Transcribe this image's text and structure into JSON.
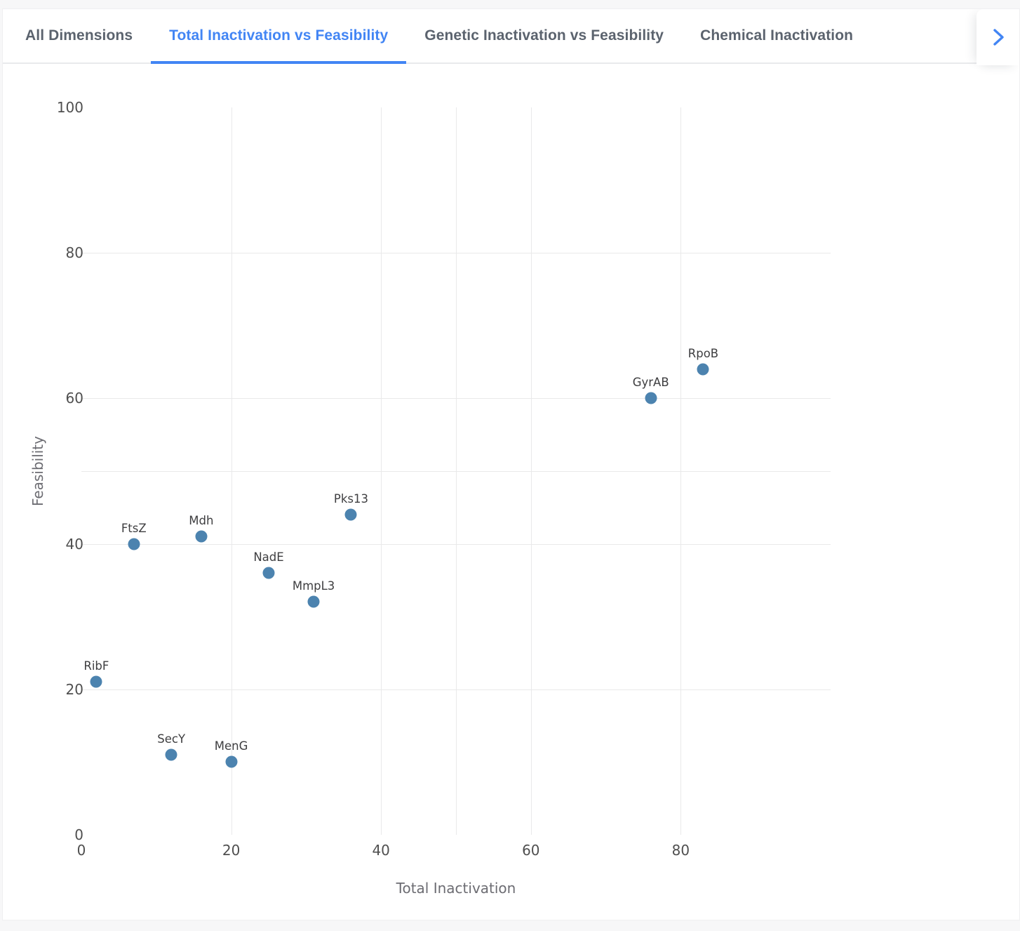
{
  "tabs": {
    "items": [
      {
        "label": "All Dimensions",
        "active": false
      },
      {
        "label": "Total Inactivation vs Feasibility",
        "active": true
      },
      {
        "label": "Genetic Inactivation vs Feasibility",
        "active": false
      },
      {
        "label": "Chemical Inactivation",
        "active": false
      }
    ]
  },
  "colors": {
    "tab_active": "#4285f4",
    "tab_inactive": "#5b636e",
    "marker": "#4c83af",
    "gridline": "#e9e9ea",
    "tick_text": "#4f4f4f",
    "axis_title_text": "#6c6c72",
    "point_label_text": "#3e3e40"
  },
  "chart_data": {
    "type": "scatter",
    "title": "",
    "xlabel": "Total Inactivation",
    "ylabel": "Feasibility",
    "xlim": [
      0,
      100
    ],
    "ylim": [
      0,
      100
    ],
    "x_ticks": [
      0,
      20,
      40,
      60,
      80
    ],
    "y_ticks": [
      0,
      20,
      40,
      60,
      80,
      100
    ],
    "x_gridlines": [
      20,
      40,
      50,
      60,
      80
    ],
    "y_gridlines": [
      20,
      40,
      50,
      60,
      80
    ],
    "grid": true,
    "legend": false,
    "marker_color": "#4c83af",
    "points": [
      {
        "label": "RpoB",
        "x": 83,
        "y": 64
      },
      {
        "label": "GyrAB",
        "x": 76,
        "y": 60
      },
      {
        "label": "Pks13",
        "x": 36,
        "y": 44
      },
      {
        "label": "Mdh",
        "x": 16,
        "y": 41
      },
      {
        "label": "FtsZ",
        "x": 7,
        "y": 40
      },
      {
        "label": "NadE",
        "x": 25,
        "y": 36
      },
      {
        "label": "MmpL3",
        "x": 31,
        "y": 32
      },
      {
        "label": "RibF",
        "x": 2,
        "y": 21
      },
      {
        "label": "SecY",
        "x": 12,
        "y": 11
      },
      {
        "label": "MenG",
        "x": 20,
        "y": 10
      }
    ]
  }
}
